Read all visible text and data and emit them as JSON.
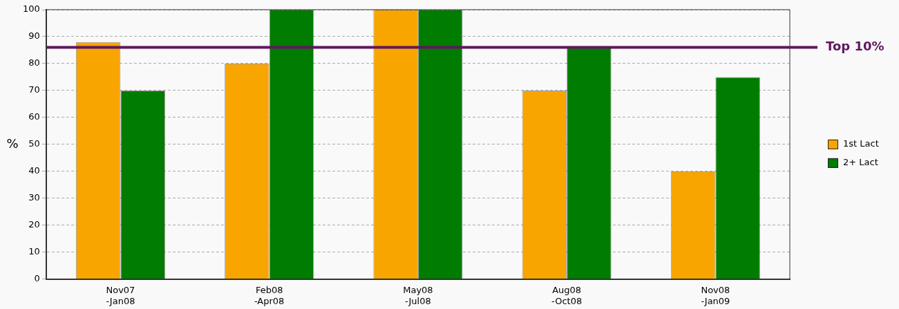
{
  "chart_data": {
    "type": "bar",
    "ylabel": "%",
    "categories": [
      "Nov07\n-Jan08",
      "Feb08\n-Apr08",
      "May08\n-Jul08",
      "Aug08\n-Oct08",
      "Nov08\n-Jan09"
    ],
    "series": [
      {
        "name": "1st Lact",
        "color": "#f8a500",
        "values": [
          88,
          80,
          100,
          70,
          40
        ]
      },
      {
        "name": "2+ Lact",
        "color": "#007c00",
        "values": [
          70,
          100,
          100,
          86,
          75
        ]
      }
    ],
    "ylim": [
      0,
      100
    ],
    "yticks": [
      0,
      10,
      20,
      30,
      40,
      50,
      60,
      70,
      80,
      90,
      100
    ],
    "grid": "y",
    "legend": "right",
    "ref_lines": [
      {
        "axis": "y",
        "value": 86,
        "label": "Top 10%",
        "color": "#60175f"
      }
    ]
  }
}
